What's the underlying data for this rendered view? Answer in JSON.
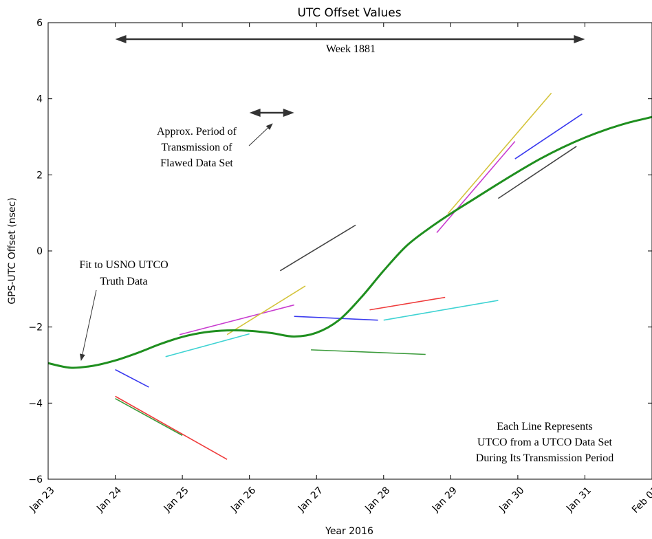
{
  "chart_data": {
    "type": "line",
    "title": "UTC Offset Values",
    "xlabel": "Year 2016",
    "ylabel": "GPS-UTC Offset (nsec)",
    "xlim": [
      "2016-01-23",
      "2016-02-01"
    ],
    "ylim": [
      -6,
      6
    ],
    "x_ticks": [
      "Jan 23",
      "Jan 24",
      "Jan 25",
      "Jan 26",
      "Jan 27",
      "Jan 28",
      "Jan 29",
      "Jan 30",
      "Jan 31",
      "Feb 01"
    ],
    "y_ticks": [
      -6,
      -4,
      -2,
      0,
      2,
      4,
      6
    ],
    "grid": false,
    "truth_fit": {
      "color": "#1f8f1f",
      "points": [
        [
          "2016-01-23 00:00",
          -2.95
        ],
        [
          "2016-01-23 08:00",
          -3.07
        ],
        [
          "2016-01-23 16:00",
          -3.02
        ],
        [
          "2016-01-24 00:00",
          -2.88
        ],
        [
          "2016-01-24 08:00",
          -2.68
        ],
        [
          "2016-01-24 16:00",
          -2.45
        ],
        [
          "2016-01-25 00:00",
          -2.26
        ],
        [
          "2016-01-25 08:00",
          -2.14
        ],
        [
          "2016-01-25 16:00",
          -2.09
        ],
        [
          "2016-01-26 00:00",
          -2.1
        ],
        [
          "2016-01-26 08:00",
          -2.16
        ],
        [
          "2016-01-26 16:00",
          -2.25
        ],
        [
          "2016-01-27 00:00",
          -2.15
        ],
        [
          "2016-01-27 08:00",
          -1.82
        ],
        [
          "2016-01-27 16:00",
          -1.22
        ],
        [
          "2016-01-28 00:00",
          -0.52
        ],
        [
          "2016-01-28 08:00",
          0.12
        ],
        [
          "2016-01-28 16:00",
          0.58
        ],
        [
          "2016-01-29 00:00",
          0.98
        ],
        [
          "2016-01-29 08:00",
          1.35
        ],
        [
          "2016-01-29 16:00",
          1.72
        ],
        [
          "2016-01-30 00:00",
          2.08
        ],
        [
          "2016-01-30 08:00",
          2.42
        ],
        [
          "2016-01-30 16:00",
          2.72
        ],
        [
          "2016-01-31 00:00",
          2.98
        ],
        [
          "2016-01-31 08:00",
          3.2
        ],
        [
          "2016-01-31 16:00",
          3.38
        ],
        [
          "2016-02-01 00:00",
          3.52
        ]
      ]
    },
    "segments": [
      {
        "color": "#3b3bef",
        "x": [
          "2016-01-24 00:00",
          "2016-01-24 12:00"
        ],
        "y": [
          -3.12,
          -3.58
        ]
      },
      {
        "color": "#ef3b3b",
        "x": [
          "2016-01-24 00:00",
          "2016-01-25 16:00"
        ],
        "y": [
          -3.82,
          -5.48
        ]
      },
      {
        "color": "#3b9b3b",
        "x": [
          "2016-01-24 00:00",
          "2016-01-25 00:00"
        ],
        "y": [
          -3.88,
          -4.85
        ]
      },
      {
        "color": "#3fd3d3",
        "x": [
          "2016-01-24 18:00",
          "2016-01-26 00:00"
        ],
        "y": [
          -2.78,
          -2.18
        ]
      },
      {
        "color": "#c83ccf",
        "x": [
          "2016-01-24 23:00",
          "2016-01-26 16:00"
        ],
        "y": [
          -2.2,
          -1.42
        ]
      },
      {
        "color": "#d4c43c",
        "x": [
          "2016-01-25 16:00",
          "2016-01-26 20:00"
        ],
        "y": [
          -2.2,
          -0.92
        ]
      },
      {
        "color": "#444444",
        "x": [
          "2016-01-26 11:00",
          "2016-01-27 14:00"
        ],
        "y": [
          -0.52,
          0.68
        ]
      },
      {
        "color": "#3b3bef",
        "x": [
          "2016-01-26 16:00",
          "2016-01-27 22:00"
        ],
        "y": [
          -1.72,
          -1.82
        ]
      },
      {
        "color": "#3b9b3b",
        "x": [
          "2016-01-26 22:00",
          "2016-01-28 15:00"
        ],
        "y": [
          -2.6,
          -2.72
        ]
      },
      {
        "color": "#ef3b3b",
        "x": [
          "2016-01-27 19:00",
          "2016-01-28 22:00"
        ],
        "y": [
          -1.55,
          -1.22
        ]
      },
      {
        "color": "#3fd3d3",
        "x": [
          "2016-01-28 00:00",
          "2016-01-29 17:00"
        ],
        "y": [
          -1.82,
          -1.3
        ]
      },
      {
        "color": "#c83ccf",
        "x": [
          "2016-01-28 19:00",
          "2016-01-29 23:00"
        ],
        "y": [
          0.48,
          2.88
        ]
      },
      {
        "color": "#d4c43c",
        "x": [
          "2016-01-28 23:00",
          "2016-01-30 12:00"
        ],
        "y": [
          0.98,
          4.15
        ]
      },
      {
        "color": "#444444",
        "x": [
          "2016-01-29 17:00",
          "2016-01-30 21:00"
        ],
        "y": [
          1.38,
          2.75
        ]
      },
      {
        "color": "#3b3bef",
        "x": [
          "2016-01-29 23:00",
          "2016-01-30 23:00"
        ],
        "y": [
          2.42,
          3.6
        ]
      }
    ],
    "annotations": {
      "week_label": "Week 1881",
      "week_span": [
        "2016-01-24",
        "2016-01-31"
      ],
      "flawed_period": [
        "2016-01-26 00:00",
        "2016-01-26 16:00"
      ],
      "flawed_label": [
        "Approx. Period of",
        "Transmission of",
        "Flawed Data Set"
      ],
      "fit_label": [
        "Fit to USNO UTCO",
        "Truth Data"
      ],
      "segments_note": [
        "Each Line Represents",
        "UTCO from a UTCO Data Set",
        "During Its Transmission Period"
      ]
    }
  }
}
